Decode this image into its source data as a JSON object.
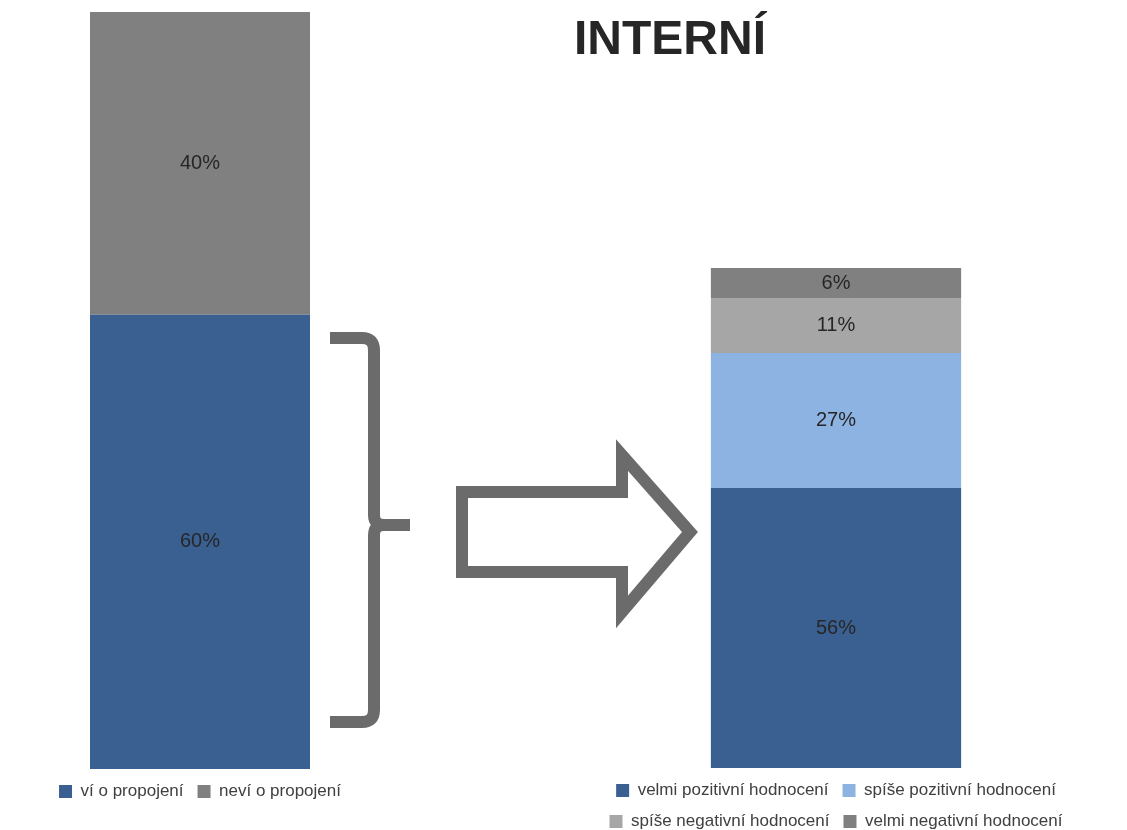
{
  "chart_data": [
    {
      "type": "bar",
      "stacked": true,
      "categories": [
        null
      ],
      "legend": "bottom",
      "series": [
        {
          "name": "ví o propojení",
          "color": "#3a6091",
          "values": [
            60
          ],
          "value_labels": [
            "60%"
          ]
        },
        {
          "name": "neví o propojení",
          "color": "#808080",
          "values": [
            40
          ],
          "value_labels": [
            "40%"
          ]
        }
      ]
    },
    {
      "type": "bar",
      "stacked": true,
      "title": "INTERNÍ",
      "categories": [
        null
      ],
      "legend": "bottom",
      "series": [
        {
          "name": "velmi pozitivní hodnocení",
          "color": "#3a6091",
          "values": [
            56
          ],
          "value_labels": [
            "56%"
          ]
        },
        {
          "name": "spíše pozitivní hodnocení",
          "color": "#8db3e2",
          "values": [
            27
          ],
          "value_labels": [
            "27%"
          ]
        },
        {
          "name": "spíše negativní hodnocení",
          "color": "#a6a6a6",
          "values": [
            11
          ],
          "value_labels": [
            "11%"
          ]
        },
        {
          "name": "velmi negativní hodnocení",
          "color": "#808080",
          "values": [
            6
          ],
          "value_labels": [
            "6%"
          ]
        }
      ]
    }
  ]
}
